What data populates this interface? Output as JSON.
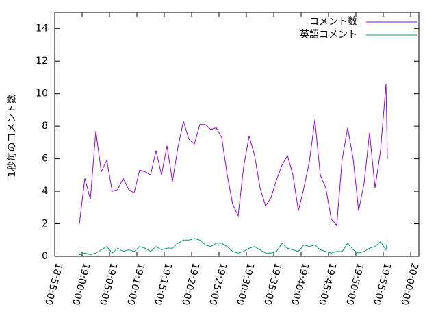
{
  "chart_data": {
    "type": "line",
    "ylabel": "1秒毎のコメント数",
    "x": [
      "18:59:30",
      "19:00:30",
      "19:01:30",
      "19:02:30",
      "19:03:30",
      "19:04:30",
      "19:05:30",
      "19:06:30",
      "19:07:30",
      "19:08:30",
      "19:09:30",
      "19:10:30",
      "19:11:30",
      "19:12:30",
      "19:13:30",
      "19:14:30",
      "19:15:30",
      "19:16:30",
      "19:17:30",
      "19:18:30",
      "19:19:30",
      "19:20:30",
      "19:21:30",
      "19:22:30",
      "19:23:30",
      "19:24:30",
      "19:25:30",
      "19:26:30",
      "19:27:30",
      "19:28:30",
      "19:29:30",
      "19:30:30",
      "19:31:30",
      "19:32:30",
      "19:33:30",
      "19:34:30",
      "19:35:30",
      "19:36:30",
      "19:37:30",
      "19:38:30",
      "19:39:30",
      "19:40:30",
      "19:41:30",
      "19:42:30",
      "19:43:30",
      "19:44:30",
      "19:45:30",
      "19:46:30",
      "19:47:30",
      "19:48:30",
      "19:49:30",
      "19:50:30",
      "19:51:30",
      "19:52:30",
      "19:53:30",
      "19:54:30",
      "19:55:30",
      "19:55:45"
    ],
    "series": [
      {
        "name": "コメント数",
        "color": "#9400d3",
        "values": [
          2.0,
          4.8,
          3.5,
          7.7,
          5.2,
          5.9,
          4.0,
          4.1,
          4.8,
          4.1,
          3.9,
          5.3,
          5.2,
          5.0,
          6.5,
          5.0,
          6.8,
          4.6,
          6.7,
          8.3,
          7.2,
          6.9,
          8.1,
          8.1,
          7.8,
          7.9,
          7.3,
          5.0,
          3.2,
          2.5,
          5.5,
          7.4,
          6.2,
          4.2,
          3.1,
          3.6,
          4.7,
          5.6,
          6.2,
          5.0,
          2.8,
          4.2,
          5.8,
          8.4,
          5.0,
          4.2,
          2.3,
          1.9,
          6.0,
          7.9,
          6.0,
          2.8,
          4.5,
          7.6,
          4.2,
          6.5,
          10.6,
          6.0
        ]
      },
      {
        "name": "英語コメント",
        "color": "#009e73",
        "values": [
          0.1,
          0.2,
          0.1,
          0.2,
          0.4,
          0.6,
          0.2,
          0.5,
          0.3,
          0.4,
          0.3,
          0.6,
          0.5,
          0.3,
          0.6,
          0.4,
          0.5,
          0.5,
          0.8,
          1.0,
          1.0,
          1.1,
          1.0,
          0.7,
          0.6,
          0.8,
          0.8,
          0.6,
          0.3,
          0.2,
          0.3,
          0.5,
          0.6,
          0.4,
          0.2,
          0.2,
          0.3,
          0.8,
          0.5,
          0.4,
          0.3,
          0.7,
          0.6,
          0.7,
          0.4,
          0.3,
          0.2,
          0.3,
          0.3,
          0.8,
          0.4,
          0.2,
          0.3,
          0.5,
          0.6,
          0.9,
          0.4,
          1.0
        ]
      }
    ],
    "xlim": [
      "18:55:00",
      "20:01:30"
    ],
    "xticks": [
      "18:55:00",
      "19:00:00",
      "19:05:00",
      "19:10:00",
      "19:15:00",
      "19:20:00",
      "19:25:00",
      "19:30:00",
      "19:35:00",
      "19:40:00",
      "19:45:00",
      "19:50:00",
      "19:55:00",
      "20:00:00"
    ],
    "ylim": [
      0,
      15
    ],
    "yticks": [
      0,
      2,
      4,
      6,
      8,
      10,
      12,
      14
    ],
    "legend": "upper right"
  }
}
